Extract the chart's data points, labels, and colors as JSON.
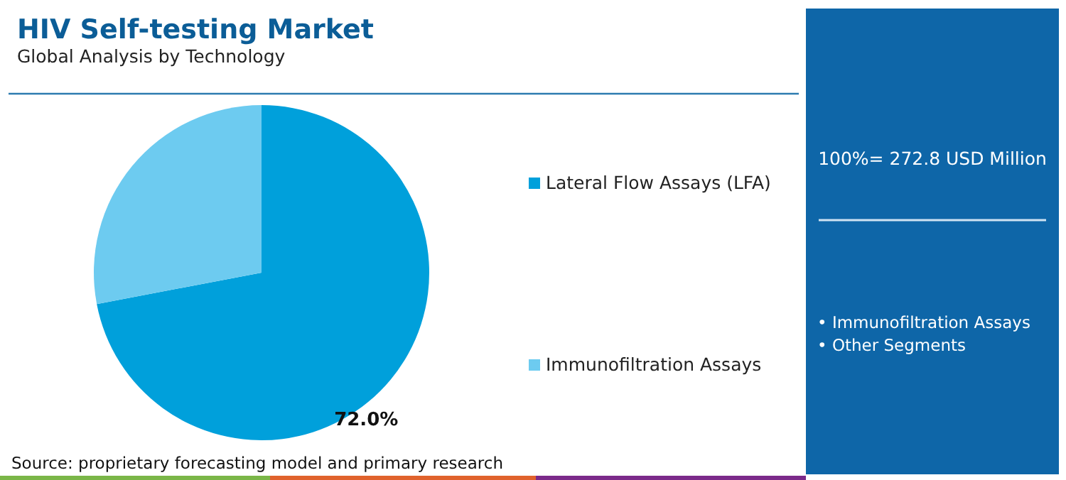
{
  "chart_data": {
    "type": "pie",
    "title": "HIV Self-testing Market",
    "subtitle": "Global Analysis by Technology",
    "categories": [
      "Lateral Flow Assays (LFA)",
      "Immunofiltration Assays"
    ],
    "values": [
      72.0,
      28.0
    ],
    "colors": [
      "#00a0db",
      "#6dcbf0"
    ],
    "value_labels": [
      "72.0%",
      null
    ],
    "legend": "right",
    "annotations": [
      "Source: proprietary forecasting model and primary research",
      "100%= 272.8 USD Million",
      "• Immunofiltration Assays",
      "• Other Segments"
    ]
  }
}
